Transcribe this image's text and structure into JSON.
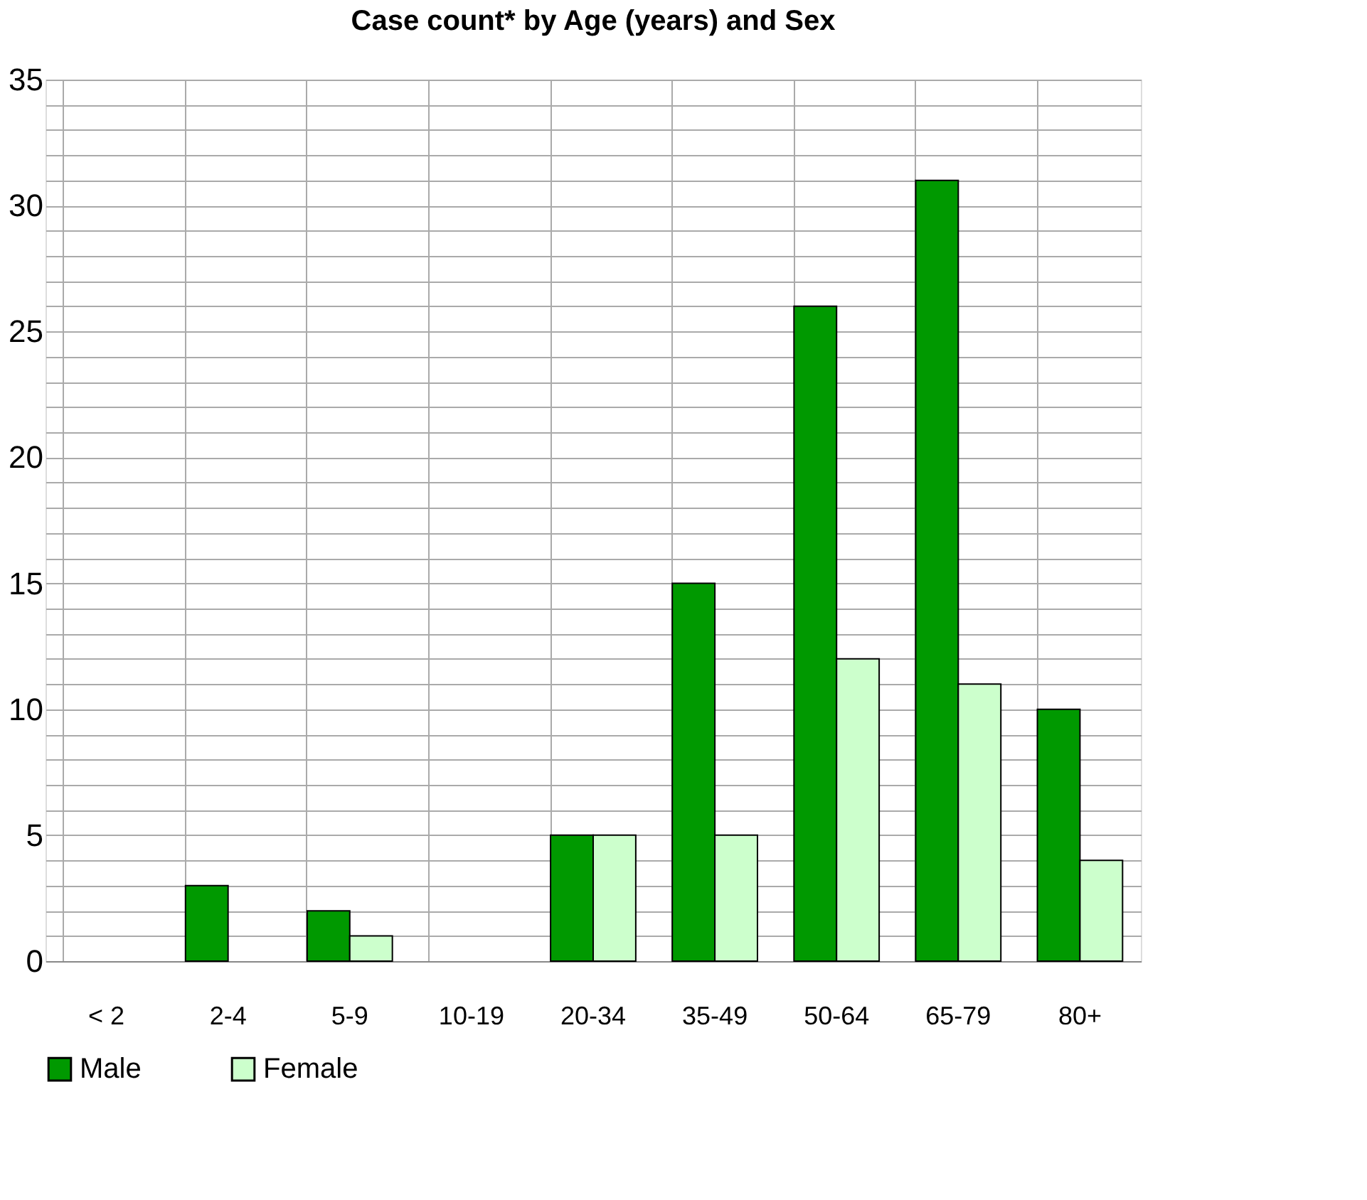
{
  "chart_data": {
    "type": "bar",
    "title": "Case count* by Age (years) and Sex",
    "categories": [
      "< 2",
      "2-4",
      "5-9",
      "10-19",
      "20-34",
      "35-49",
      "50-64",
      "65-79",
      "80+"
    ],
    "series": [
      {
        "name": "Male",
        "color": "#009900",
        "values": [
          0,
          3,
          2,
          0,
          5,
          15,
          26,
          31,
          10
        ]
      },
      {
        "name": "Female",
        "color": "#ccffcc",
        "values": [
          0,
          0,
          1,
          0,
          5,
          5,
          12,
          11,
          4
        ]
      }
    ],
    "ylim": [
      0,
      35
    ],
    "yticks": [
      0,
      {
        "value": 1,
        "label": null
      },
      {
        "value": 2,
        "label": null
      },
      {
        "value": 3,
        "label": null
      },
      {
        "value": 4,
        "label": null
      },
      5,
      {
        "value": 6,
        "label": null
      },
      {
        "value": 7,
        "label": null
      },
      {
        "value": 8,
        "label": null
      },
      {
        "value": 9,
        "label": null
      },
      10,
      {
        "value": 11,
        "label": null
      },
      {
        "value": 12,
        "label": null
      },
      {
        "value": 13,
        "label": null
      },
      {
        "value": 14,
        "label": null
      },
      15,
      {
        "value": 16,
        "label": null
      },
      {
        "value": 17,
        "label": null
      },
      {
        "value": 18,
        "label": null
      },
      {
        "value": 19,
        "label": null
      },
      20,
      {
        "value": 21,
        "label": null
      },
      {
        "value": 22,
        "label": null
      },
      {
        "value": 23,
        "label": null
      },
      {
        "value": 24,
        "label": null
      },
      25,
      {
        "value": 26,
        "label": null
      },
      {
        "value": 27,
        "label": null
      },
      {
        "value": 28,
        "label": null
      },
      {
        "value": 29,
        "label": null
      },
      30,
      {
        "value": 31,
        "label": null
      },
      {
        "value": 32,
        "label": null
      },
      {
        "value": 33,
        "label": null
      },
      {
        "value": 34,
        "label": null
      },
      35
    ],
    "grid": true,
    "legend": "bottom"
  }
}
